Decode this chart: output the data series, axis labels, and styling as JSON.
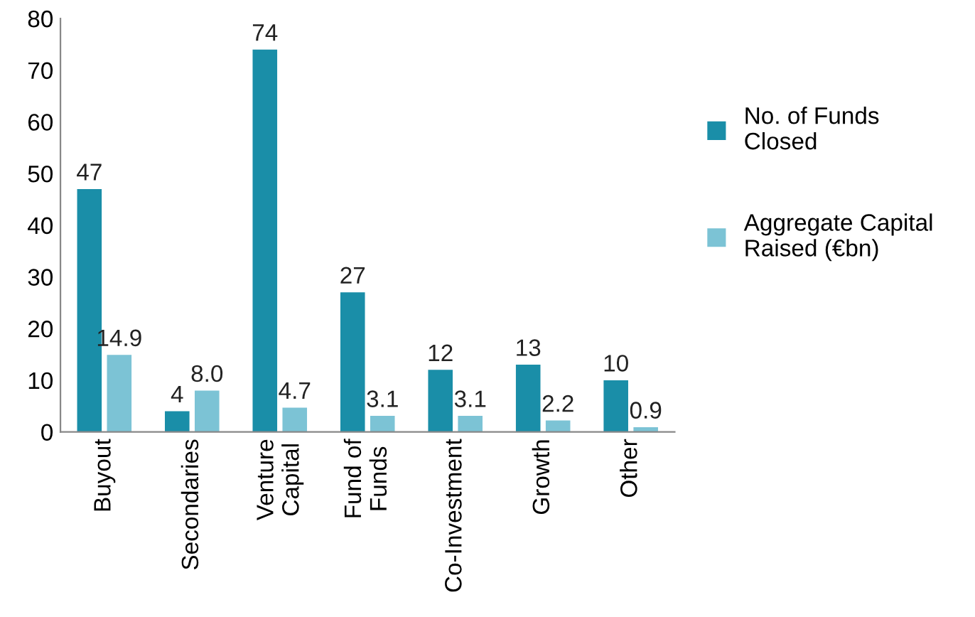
{
  "chart_data": {
    "type": "bar",
    "categories": [
      "Buyout",
      "Secondaries",
      "Venture\nCapital",
      "Fund of\nFunds",
      "Co-Investment",
      "Growth",
      "Other"
    ],
    "series": [
      {
        "name": "No. of Funds\nClosed",
        "color": "#1a8ea8",
        "values": [
          47,
          4,
          74,
          27,
          12,
          13,
          10
        ],
        "value_labels": [
          "47",
          "4",
          "74",
          "27",
          "12",
          "13",
          "10"
        ]
      },
      {
        "name": "Aggregate Capital\nRaised (€bn)",
        "color": "#7cc3d5",
        "values": [
          14.9,
          8.0,
          4.7,
          3.1,
          3.1,
          2.2,
          0.9
        ],
        "value_labels": [
          "14.9",
          "8.0",
          "4.7",
          "3.1",
          "3.1",
          "2.2",
          "0.9"
        ]
      }
    ],
    "ylim": [
      0,
      80
    ],
    "yticks": [
      0,
      10,
      20,
      30,
      40,
      50,
      60,
      70,
      80
    ],
    "grid": false,
    "legend": "right"
  }
}
